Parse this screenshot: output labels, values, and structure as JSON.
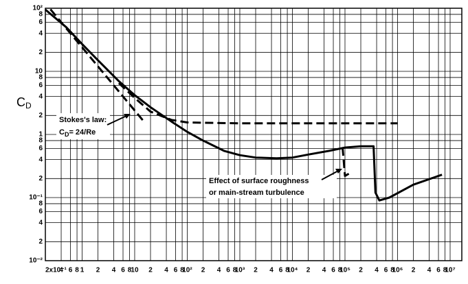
{
  "chart_data": {
    "type": "line",
    "ylabel": "C",
    "ylabel_sub": "D",
    "xscale": "log",
    "yscale": "log",
    "grid": true,
    "color": "#000000",
    "xlim": [
      0.2,
      10000000
    ],
    "ylim": [
      0.01,
      100
    ],
    "xticks": [
      {
        "value": 0.2,
        "label": "2x10⁻¹"
      },
      {
        "value": 0.4,
        "label": "4"
      },
      {
        "value": 0.6,
        "label": "6"
      },
      {
        "value": 0.8,
        "label": "8"
      },
      1,
      2,
      4,
      6,
      8,
      10,
      {
        "value": 20,
        "label": "2"
      },
      {
        "value": 40,
        "label": "4"
      },
      {
        "value": 60,
        "label": "6"
      },
      {
        "value": 80,
        "label": "8"
      },
      {
        "value": 100,
        "label": "10²"
      },
      {
        "value": 200,
        "label": "2"
      },
      {
        "value": 400,
        "label": "4"
      },
      {
        "value": 600,
        "label": "6"
      },
      {
        "value": 800,
        "label": "8"
      },
      {
        "value": 1000,
        "label": "10³"
      },
      {
        "value": 2000,
        "label": "2"
      },
      {
        "value": 4000,
        "label": "4"
      },
      {
        "value": 6000,
        "label": "6"
      },
      {
        "value": 8000,
        "label": "8"
      },
      {
        "value": 10000,
        "label": "10⁴"
      },
      {
        "value": 20000,
        "label": "2"
      },
      {
        "value": 40000,
        "label": "4"
      },
      {
        "value": 60000,
        "label": "6"
      },
      {
        "value": 80000,
        "label": "8"
      },
      {
        "value": 100000,
        "label": "10⁵"
      },
      {
        "value": 200000,
        "label": "2"
      },
      {
        "value": 400000,
        "label": "4"
      },
      {
        "value": 600000,
        "label": "6"
      },
      {
        "value": 800000,
        "label": "8"
      },
      {
        "value": 1000000,
        "label": "10⁶"
      },
      {
        "value": 2000000,
        "label": "2"
      },
      {
        "value": 4000000,
        "label": "4"
      },
      {
        "value": 6000000,
        "label": "6"
      },
      {
        "value": 8000000,
        "label": "8"
      },
      {
        "value": 10000000,
        "label": "10⁷"
      }
    ],
    "yticks": [
      {
        "value": 0.01,
        "label": "10⁻²"
      },
      {
        "value": 0.02,
        "label": "2"
      },
      {
        "value": 0.04,
        "label": "4"
      },
      {
        "value": 0.06,
        "label": "6"
      },
      {
        "value": 0.08,
        "label": "8"
      },
      {
        "value": 0.1,
        "label": "10⁻¹"
      },
      {
        "value": 0.2,
        "label": "2"
      },
      {
        "value": 0.4,
        "label": "4"
      },
      {
        "value": 0.6,
        "label": "6"
      },
      {
        "value": 0.8,
        "label": "8"
      },
      1,
      2,
      4,
      6,
      8,
      10,
      {
        "value": 20,
        "label": "2"
      },
      {
        "value": 40,
        "label": "4"
      },
      {
        "value": 60,
        "label": "6"
      },
      {
        "value": 80,
        "label": "8"
      },
      {
        "value": 100,
        "label": "10²"
      }
    ],
    "series": [
      {
        "style": "solid",
        "color": "#000000",
        "x": [
          0.2,
          0.5,
          1,
          2,
          5,
          10,
          20,
          50,
          100,
          200,
          500,
          1000,
          2000,
          5000,
          10000,
          20000,
          50000,
          100000,
          200000,
          350000,
          380000,
          450000,
          700000,
          2000000,
          7000000
        ],
        "values": [
          95,
          50,
          27,
          15,
          7,
          4.2,
          2.7,
          1.6,
          1.1,
          0.8,
          0.55,
          0.47,
          0.43,
          0.42,
          0.43,
          0.48,
          0.55,
          0.62,
          0.65,
          0.65,
          0.12,
          0.09,
          0.1,
          0.16,
          0.23
        ]
      },
      {
        "style": "dashed",
        "color": "#000000",
        "x": [
          0.25,
          15
        ],
        "values": [
          96,
          1.6
        ]
      },
      {
        "style": "dashed",
        "color": "#000000",
        "x": [
          5,
          10,
          20,
          50,
          100,
          1000,
          1000000
        ],
        "values": [
          6.5,
          3.8,
          2.3,
          1.7,
          1.55,
          1.5,
          1.5
        ]
      },
      {
        "style": "dashed",
        "color": "#000000",
        "x": [
          90000,
          100000,
          130000
        ],
        "values": [
          0.62,
          0.22,
          0.25
        ]
      }
    ],
    "annotations": [
      {
        "lines": [
          "Stokes's law:"
        ],
        "formula": {
          "main": "C",
          "sub": "D",
          "rest": "= 24/Re"
        }
      },
      {
        "lines": [
          "Effect of surface roughness",
          "or main-stream turbulence"
        ]
      }
    ]
  }
}
